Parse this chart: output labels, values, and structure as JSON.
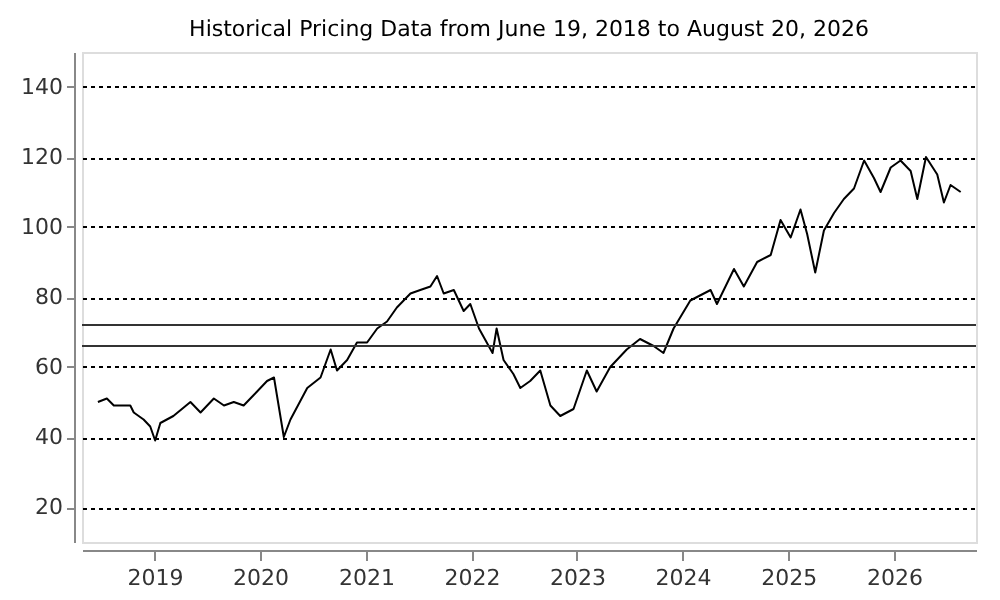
{
  "chart_data": {
    "type": "line",
    "title": "Historical Pricing Data from June 19, 2018 to August 20, 2026",
    "x": [
      "2018-06-19",
      "2018-07-20",
      "2018-08-13",
      "2018-09-16",
      "2018-10-09",
      "2018-10-21",
      "2018-11-24",
      "2018-12-17",
      "2019-01-03",
      "2019-01-21",
      "2019-03-07",
      "2019-05-05",
      "2019-06-09",
      "2019-07-25",
      "2019-08-29",
      "2019-10-02",
      "2019-11-05",
      "2019-12-10",
      "2020-01-25",
      "2020-02-18",
      "2020-02-28",
      "2020-03-23",
      "2020-04-15",
      "2020-06-12",
      "2020-07-28",
      "2020-09-01",
      "2020-09-23",
      "2020-10-28",
      "2020-12-01",
      "2021-01-05",
      "2021-02-09",
      "2021-03-15",
      "2021-04-18",
      "2021-06-04",
      "2021-07-08",
      "2021-08-12",
      "2021-09-04",
      "2021-09-27",
      "2021-11-01",
      "2021-12-05",
      "2021-12-28",
      "2022-01-27",
      "2022-03-15",
      "2022-03-29",
      "2022-04-22",
      "2022-05-26",
      "2022-06-19",
      "2022-07-23",
      "2022-08-27",
      "2022-10-01",
      "2022-11-04",
      "2022-12-20",
      "2023-02-04",
      "2023-03-10",
      "2023-04-26",
      "2023-06-22",
      "2023-08-07",
      "2023-09-23",
      "2023-10-27",
      "2023-12-01",
      "2024-01-28",
      "2024-04-07",
      "2024-04-29",
      "2024-06-27",
      "2024-07-31",
      "2024-09-15",
      "2024-11-01",
      "2024-12-05",
      "2025-01-09",
      "2025-02-12",
      "2025-03-07",
      "2025-04-04",
      "2025-05-04",
      "2025-06-08",
      "2025-07-12",
      "2025-08-16",
      "2025-09-20",
      "2025-10-24",
      "2025-11-16",
      "2025-12-21",
      "2026-01-24",
      "2026-02-28",
      "2026-03-23",
      "2026-04-22",
      "2026-05-31",
      "2026-06-23",
      "2026-07-16",
      "2026-08-20"
    ],
    "series": [
      {
        "color": "#000000",
        "values": [
          50,
          51,
          49,
          49,
          49,
          47,
          45,
          43,
          39,
          44,
          46,
          50,
          47,
          51,
          49,
          50,
          49,
          52,
          56,
          57,
          52,
          40,
          45,
          54,
          57,
          65,
          59,
          62,
          67,
          67,
          71,
          73,
          77,
          81,
          82,
          83,
          86,
          81,
          82,
          76,
          78,
          71,
          64,
          71,
          62,
          58,
          54,
          56,
          59,
          49,
          46,
          48,
          59,
          53,
          60,
          65,
          68,
          66,
          64,
          71,
          79,
          82,
          78,
          88,
          83,
          90,
          92,
          102,
          97,
          105,
          98,
          87,
          99,
          104,
          108,
          111,
          119,
          114,
          110,
          117,
          119,
          116,
          108,
          120,
          115,
          107,
          112,
          110
        ]
      }
    ],
    "xlim": [
      "2018-04-25",
      "2026-10-12"
    ],
    "xticks": [
      {
        "value": "2019-01-01",
        "label": "2019"
      },
      {
        "value": "2020-01-01",
        "label": "2020"
      },
      {
        "value": "2021-01-01",
        "label": "2021"
      },
      {
        "value": "2022-01-01",
        "label": "2022"
      },
      {
        "value": "2023-01-01",
        "label": "2023"
      },
      {
        "value": "2024-01-01",
        "label": "2024"
      },
      {
        "value": "2025-01-01",
        "label": "2025"
      },
      {
        "value": "2026-01-01",
        "label": "2026"
      }
    ],
    "ylim": [
      10,
      150
    ],
    "yticks": [
      20,
      40,
      60,
      80,
      100,
      120,
      140
    ],
    "grid": "y",
    "line_style": "solid",
    "marker": "none",
    "ref_lines": [
      {
        "axis": "y",
        "value": 66,
        "color": "#333333"
      },
      {
        "axis": "y",
        "value": 72,
        "color": "#333333"
      }
    ]
  }
}
